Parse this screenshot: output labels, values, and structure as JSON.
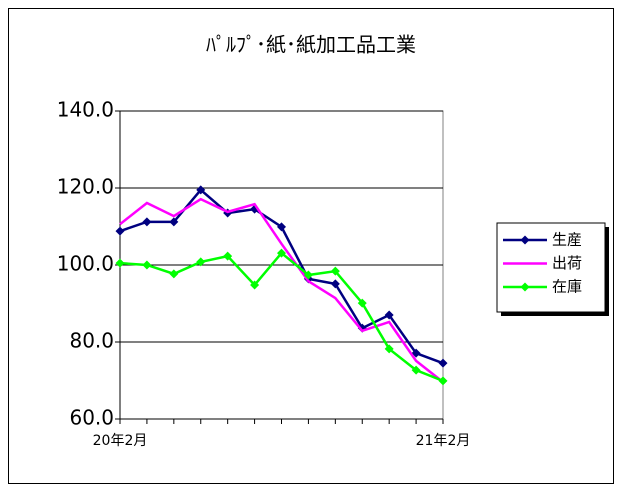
{
  "chart_data": {
    "type": "line",
    "title": "ﾊﾟﾙﾌﾟ･紙･紙加工品工業",
    "categories": [
      "20年2月",
      null,
      null,
      null,
      null,
      null,
      null,
      null,
      null,
      null,
      null,
      null,
      "21年2月"
    ],
    "series": [
      {
        "name": "生産",
        "color": "#000080",
        "marker": "diamond",
        "values": [
          108.8,
          111.2,
          111.2,
          119.5,
          113.5,
          114.5,
          109.9,
          96.4,
          95.1,
          83.6,
          87.0,
          77.1,
          74.5
        ]
      },
      {
        "name": "出荷",
        "color": "#ff00ff",
        "values": [
          110.6,
          116.1,
          112.7,
          117.1,
          113.8,
          115.8,
          105.5,
          95.8,
          91.4,
          82.9,
          85.2,
          75.1,
          69.6
        ]
      },
      {
        "name": "在庫",
        "color": "#00ff00",
        "marker": "diamond",
        "values": [
          100.5,
          100.0,
          97.7,
          100.8,
          102.3,
          94.8,
          103.1,
          97.4,
          98.4,
          90.1,
          78.2,
          72.7,
          69.9
        ]
      }
    ],
    "ylim": [
      60,
      140
    ],
    "yticks": [
      {
        "value": 60,
        "label": "60.0"
      },
      {
        "value": 80,
        "label": "80.0"
      },
      {
        "value": 100,
        "label": "100.0"
      },
      {
        "value": 120,
        "label": "120.0"
      },
      {
        "value": 140,
        "label": "140.0"
      }
    ],
    "grid": true,
    "legend": "right"
  }
}
